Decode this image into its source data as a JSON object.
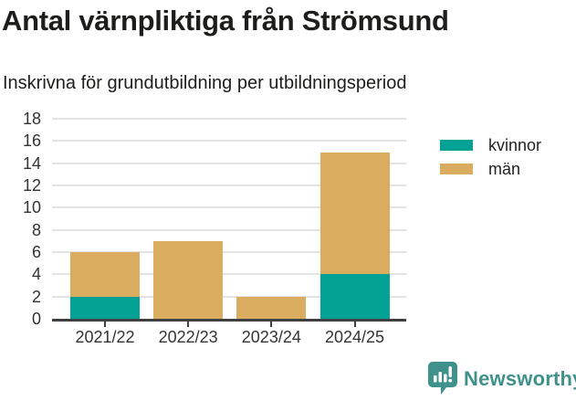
{
  "header": {
    "title": "Antal värnpliktiga från Strömsund",
    "subtitle": "Inskrivna för grundutbildning per utbildningsperiod"
  },
  "chart_data": {
    "type": "bar",
    "stacked": true,
    "title": "Antal värnpliktiga från Strömsund",
    "subtitle": "Inskrivna för grundutbildning per utbildningsperiod",
    "categories": [
      "2021/22",
      "2022/23",
      "2023/24",
      "2024/25"
    ],
    "series": [
      {
        "name": "kvinnor",
        "color": "#03A294",
        "values": [
          2,
          0,
          0,
          4
        ]
      },
      {
        "name": "män",
        "color": "#D9AC5F",
        "values": [
          4,
          7,
          2,
          11
        ]
      }
    ],
    "stack_totals": [
      6,
      7,
      2,
      15
    ],
    "xlabel": "",
    "ylabel": "",
    "ylim": [
      0,
      18
    ],
    "yticks": [
      0,
      2,
      4,
      6,
      8,
      10,
      12,
      14,
      16,
      18
    ],
    "grid": true,
    "legend_position": "top-right"
  },
  "footer": {
    "brand_name": "Newsworthy"
  },
  "colors": {
    "kvinnor": "#03A294",
    "man": "#D9AC5F",
    "axis": "#404040",
    "gridline": "#E3E3E3",
    "title_text": "#1D1D1B",
    "axis_text": "#333333",
    "brand": "#3F918C"
  }
}
